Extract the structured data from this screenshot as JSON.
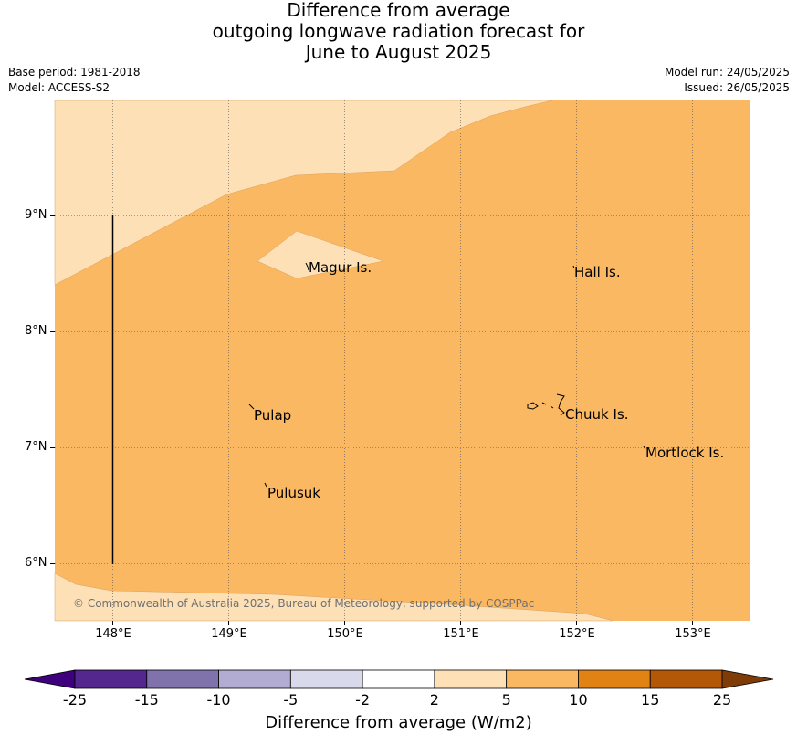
{
  "title": {
    "line1": "Difference from average",
    "line2": "outgoing longwave radiation forecast for",
    "line3": "June to August 2025"
  },
  "meta_left": {
    "base_period": "Base period: 1981-2018",
    "model": "Model: ACCESS-S2"
  },
  "meta_right": {
    "model_run": "Model run: 24/05/2025",
    "issued": "Issued: 26/05/2025"
  },
  "map": {
    "lat_range": [
      5.5,
      10.0
    ],
    "lon_range": [
      147.5,
      153.5
    ],
    "lat_labels": [
      "9°N",
      "8°N",
      "7°N",
      "6°N"
    ],
    "lon_labels": [
      "148°E",
      "149°E",
      "150°E",
      "151°E",
      "152°E",
      "153°E"
    ],
    "places": [
      {
        "name": "Magur Is."
      },
      {
        "name": "Hall Is."
      },
      {
        "name": "Pulap"
      },
      {
        "name": "Chuuk Is."
      },
      {
        "name": "Mortlock Is."
      },
      {
        "name": "Pulusuk"
      }
    ],
    "copyright": "© Commonwealth of Australia 2025, Bureau of Meteorology, supported by COSPPac",
    "fill_colors": {
      "band_2_5": "#fde0b6",
      "band_5_10": "#fbb862"
    }
  },
  "colorbar": {
    "ticks": [
      "-25",
      "-15",
      "-10",
      "-5",
      "-2",
      "2",
      "5",
      "10",
      "15",
      "25"
    ],
    "colors": [
      "#3f007d",
      "#54278f",
      "#8073ac",
      "#b2abd2",
      "#d8daeb",
      "#ffffff",
      "#fde0b6",
      "#fbb862",
      "#e08214",
      "#b35806",
      "#7f3b08"
    ],
    "label": "Difference from average (W/m2)"
  }
}
